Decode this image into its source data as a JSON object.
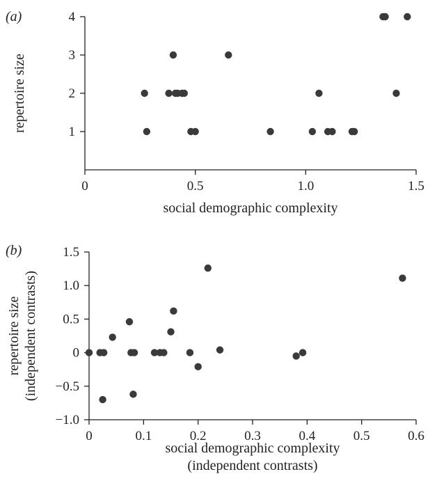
{
  "chart_data": [
    {
      "type": "scatter",
      "panel_label": "(a)",
      "xlabel": "social demographic complexity",
      "ylabel": "repertoire size",
      "ylabel_line2": "",
      "xlabel_line2": "",
      "xlim": [
        0,
        1.5
      ],
      "ylim": [
        0,
        4
      ],
      "xticks": [
        0,
        0.5,
        1.0,
        1.5
      ],
      "xtick_labels": [
        "0",
        "0.5",
        "1.0",
        "1.5"
      ],
      "yticks": [
        1,
        2,
        3,
        4
      ],
      "ytick_labels": [
        "1",
        "2",
        "3",
        "4"
      ],
      "grid": false,
      "marker_color": "#3a3a3a",
      "points": [
        {
          "x": 0.27,
          "y": 2
        },
        {
          "x": 0.28,
          "y": 1
        },
        {
          "x": 0.38,
          "y": 2
        },
        {
          "x": 0.4,
          "y": 3
        },
        {
          "x": 0.41,
          "y": 2
        },
        {
          "x": 0.42,
          "y": 2
        },
        {
          "x": 0.44,
          "y": 2
        },
        {
          "x": 0.45,
          "y": 2
        },
        {
          "x": 0.48,
          "y": 1
        },
        {
          "x": 0.5,
          "y": 1
        },
        {
          "x": 0.65,
          "y": 3
        },
        {
          "x": 0.84,
          "y": 1
        },
        {
          "x": 1.03,
          "y": 1
        },
        {
          "x": 1.06,
          "y": 2
        },
        {
          "x": 1.1,
          "y": 1
        },
        {
          "x": 1.12,
          "y": 1
        },
        {
          "x": 1.21,
          "y": 1
        },
        {
          "x": 1.22,
          "y": 1
        },
        {
          "x": 1.35,
          "y": 4
        },
        {
          "x": 1.36,
          "y": 4
        },
        {
          "x": 1.41,
          "y": 2
        },
        {
          "x": 1.46,
          "y": 4
        }
      ]
    },
    {
      "type": "scatter",
      "panel_label": "(b)",
      "xlabel": "social demographic complexity",
      "xlabel_line2": "(independent contrasts)",
      "ylabel": "repertoire size",
      "ylabel_line2": "(independent contrasts)",
      "xlim": [
        0,
        0.6
      ],
      "ylim": [
        -1.0,
        1.5
      ],
      "xticks": [
        0,
        0.1,
        0.2,
        0.3,
        0.4,
        0.5,
        0.6
      ],
      "xtick_labels": [
        "0",
        "0.1",
        "0.2",
        "0.3",
        "0.4",
        "0.5",
        "0.6"
      ],
      "yticks": [
        -1.0,
        -0.5,
        0,
        0.5,
        1.0,
        1.5
      ],
      "ytick_labels": [
        "−1.0",
        "−0.5",
        "0",
        "0.5",
        "1.0",
        "1.5"
      ],
      "grid": false,
      "marker_color": "#3a3a3a",
      "points": [
        {
          "x": 0.0,
          "y": 0.0
        },
        {
          "x": 0.02,
          "y": 0.0
        },
        {
          "x": 0.027,
          "y": 0.0
        },
        {
          "x": 0.025,
          "y": -0.7
        },
        {
          "x": 0.043,
          "y": 0.23
        },
        {
          "x": 0.074,
          "y": 0.46
        },
        {
          "x": 0.077,
          "y": 0.0
        },
        {
          "x": 0.083,
          "y": 0.0
        },
        {
          "x": 0.081,
          "y": -0.62
        },
        {
          "x": 0.12,
          "y": 0.0
        },
        {
          "x": 0.13,
          "y": 0.0
        },
        {
          "x": 0.137,
          "y": 0.0
        },
        {
          "x": 0.15,
          "y": 0.31
        },
        {
          "x": 0.155,
          "y": 0.62
        },
        {
          "x": 0.185,
          "y": 0.0
        },
        {
          "x": 0.2,
          "y": -0.21
        },
        {
          "x": 0.218,
          "y": 1.26
        },
        {
          "x": 0.24,
          "y": 0.04
        },
        {
          "x": 0.38,
          "y": -0.05
        },
        {
          "x": 0.392,
          "y": 0.0
        },
        {
          "x": 0.575,
          "y": 1.11
        }
      ]
    }
  ]
}
